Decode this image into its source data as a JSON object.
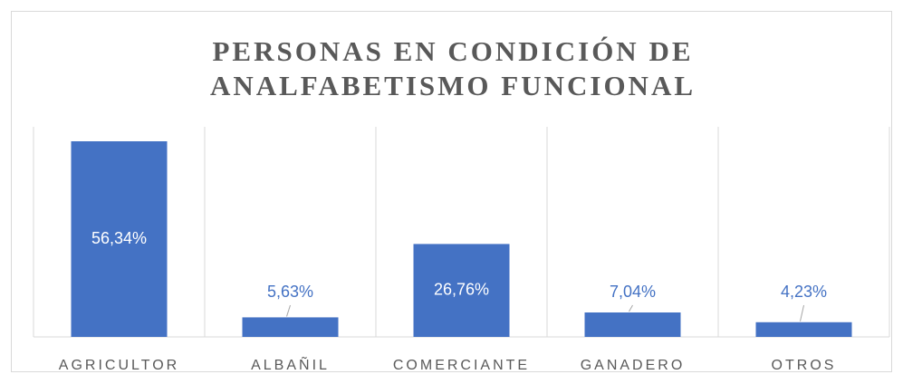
{
  "chart_data": {
    "type": "bar",
    "title": [
      "PERSONAS EN CONDICIÓN DE",
      "ANALFABETISMO FUNCIONAL"
    ],
    "categories": [
      "AGRICULTOR",
      "ALBAÑIL",
      "COMERCIANTE",
      "GANADERO",
      "OTROS"
    ],
    "values": [
      56.34,
      5.63,
      26.76,
      7.04,
      4.23
    ],
    "value_labels": [
      "56,34%",
      "5,63%",
      "26,76%",
      "7,04%",
      "4,23%"
    ],
    "color": "#4472c4"
  }
}
